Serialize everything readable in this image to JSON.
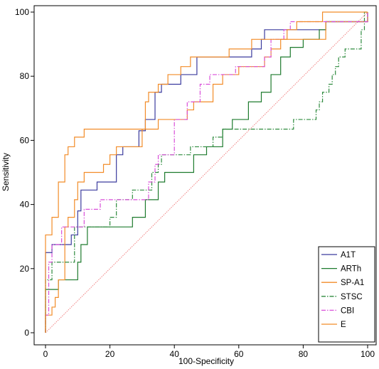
{
  "chart_data": {
    "type": "line",
    "title": "",
    "xlabel": "100-Specificity",
    "ylabel": "Sensitivity",
    "xlim": [
      0,
      100
    ],
    "ylim": [
      0,
      100
    ],
    "x_ticks": [
      0,
      20,
      40,
      60,
      80,
      100
    ],
    "y_ticks": [
      0,
      20,
      40,
      60,
      80,
      100
    ],
    "grid": false,
    "legend_position": "bottom-right",
    "reference_line": {
      "from": [
        0,
        0
      ],
      "to": [
        100,
        100
      ],
      "color": "#f08080",
      "style": "dotted"
    },
    "series": [
      {
        "name": "A1T",
        "color": "#3b3b9e",
        "dash": "solid",
        "points": [
          [
            0,
            0
          ],
          [
            0,
            25
          ],
          [
            2,
            25
          ],
          [
            2,
            27.5
          ],
          [
            8,
            27.5
          ],
          [
            8,
            30.5
          ],
          [
            10,
            30.5
          ],
          [
            10,
            38
          ],
          [
            11,
            38
          ],
          [
            11,
            44.5
          ],
          [
            16,
            44.5
          ],
          [
            16,
            47
          ],
          [
            22,
            47
          ],
          [
            22,
            55.5
          ],
          [
            24,
            55.5
          ],
          [
            24,
            58
          ],
          [
            29,
            58
          ],
          [
            29,
            63
          ],
          [
            31,
            63
          ],
          [
            31,
            66.5
          ],
          [
            34,
            66.5
          ],
          [
            34,
            75
          ],
          [
            36,
            75
          ],
          [
            36,
            77.5
          ],
          [
            42,
            77.5
          ],
          [
            42,
            80.5
          ],
          [
            47,
            80.5
          ],
          [
            47,
            86
          ],
          [
            64,
            86
          ],
          [
            64,
            88.5
          ],
          [
            67,
            88.5
          ],
          [
            67,
            91.5
          ],
          [
            68,
            91.5
          ],
          [
            68,
            94.5
          ],
          [
            87,
            94.5
          ],
          [
            87,
            97
          ],
          [
            100,
            97
          ],
          [
            100,
            100
          ]
        ]
      },
      {
        "name": "ARTh",
        "color": "#1e7b2e",
        "dash": "solid",
        "points": [
          [
            0,
            0
          ],
          [
            0,
            13.5
          ],
          [
            4,
            13.5
          ],
          [
            4,
            16.5
          ],
          [
            10,
            16.5
          ],
          [
            10,
            22
          ],
          [
            11,
            22
          ],
          [
            11,
            27.5
          ],
          [
            13,
            27.5
          ],
          [
            13,
            33
          ],
          [
            27,
            33
          ],
          [
            27,
            36
          ],
          [
            31,
            36
          ],
          [
            31,
            41.5
          ],
          [
            35,
            41.5
          ],
          [
            35,
            47
          ],
          [
            37,
            47
          ],
          [
            37,
            50
          ],
          [
            46,
            50
          ],
          [
            46,
            55.5
          ],
          [
            50,
            55.5
          ],
          [
            50,
            58
          ],
          [
            55,
            58
          ],
          [
            55,
            63.5
          ],
          [
            58,
            63.5
          ],
          [
            58,
            66.5
          ],
          [
            63,
            66.5
          ],
          [
            63,
            72
          ],
          [
            67,
            72
          ],
          [
            67,
            75
          ],
          [
            70,
            75
          ],
          [
            70,
            80.5
          ],
          [
            73,
            80.5
          ],
          [
            73,
            86
          ],
          [
            76,
            86
          ],
          [
            76,
            89
          ],
          [
            80,
            89
          ],
          [
            80,
            91.5
          ],
          [
            85,
            91.5
          ],
          [
            85,
            94.5
          ],
          [
            87,
            94.5
          ],
          [
            87,
            97
          ],
          [
            100,
            97
          ],
          [
            100,
            100
          ]
        ]
      },
      {
        "name": "SP-A1",
        "color": "#f28c28",
        "dash": "solid",
        "points": [
          [
            0,
            0
          ],
          [
            0,
            5.5
          ],
          [
            2,
            5.5
          ],
          [
            2,
            8
          ],
          [
            3,
            8
          ],
          [
            3,
            11
          ],
          [
            4,
            11
          ],
          [
            4,
            16.5
          ],
          [
            6,
            16.5
          ],
          [
            6,
            33
          ],
          [
            7,
            33
          ],
          [
            7,
            36
          ],
          [
            9,
            36
          ],
          [
            9,
            41.5
          ],
          [
            10,
            41.5
          ],
          [
            10,
            47
          ],
          [
            12,
            47
          ],
          [
            12,
            50
          ],
          [
            18,
            50
          ],
          [
            18,
            52.5
          ],
          [
            20,
            52.5
          ],
          [
            20,
            55.5
          ],
          [
            22,
            55.5
          ],
          [
            22,
            58
          ],
          [
            30,
            58
          ],
          [
            30,
            63.5
          ],
          [
            35,
            63.5
          ],
          [
            35,
            66.5
          ],
          [
            44,
            66.5
          ],
          [
            44,
            69.5
          ],
          [
            46,
            69.5
          ],
          [
            46,
            72
          ],
          [
            52,
            72
          ],
          [
            52,
            77.5
          ],
          [
            55,
            77.5
          ],
          [
            55,
            80.5
          ],
          [
            60,
            80.5
          ],
          [
            60,
            83
          ],
          [
            68,
            83
          ],
          [
            68,
            86
          ],
          [
            70,
            86
          ],
          [
            70,
            88.5
          ],
          [
            73,
            88.5
          ],
          [
            73,
            91.5
          ],
          [
            87,
            91.5
          ],
          [
            87,
            97
          ],
          [
            100,
            97
          ],
          [
            100,
            100
          ]
        ]
      },
      {
        "name": "STSC",
        "color": "#2e8b3e",
        "dash": "dashdot",
        "points": [
          [
            0,
            0
          ],
          [
            0,
            16.5
          ],
          [
            2,
            16.5
          ],
          [
            2,
            22
          ],
          [
            9,
            22
          ],
          [
            9,
            33
          ],
          [
            20,
            33
          ],
          [
            20,
            36
          ],
          [
            22,
            36
          ],
          [
            22,
            41.5
          ],
          [
            27,
            41.5
          ],
          [
            27,
            44.5
          ],
          [
            33,
            44.5
          ],
          [
            33,
            50
          ],
          [
            35,
            50
          ],
          [
            35,
            52.5
          ],
          [
            36,
            52.5
          ],
          [
            36,
            55.5
          ],
          [
            45,
            55.5
          ],
          [
            45,
            58
          ],
          [
            52,
            58
          ],
          [
            52,
            61
          ],
          [
            55,
            61
          ],
          [
            55,
            63.5
          ],
          [
            77,
            63.5
          ],
          [
            77,
            66.5
          ],
          [
            84,
            66.5
          ],
          [
            84,
            69.5
          ],
          [
            85,
            69.5
          ],
          [
            85,
            72
          ],
          [
            86,
            72
          ],
          [
            86,
            75
          ],
          [
            88,
            75
          ],
          [
            88,
            77.5
          ],
          [
            89,
            77.5
          ],
          [
            89,
            80.5
          ],
          [
            90,
            80.5
          ],
          [
            90,
            83
          ],
          [
            91,
            83
          ],
          [
            91,
            86
          ],
          [
            93,
            86
          ],
          [
            93,
            88.5
          ],
          [
            98,
            88.5
          ],
          [
            98,
            94.5
          ],
          [
            99,
            94.5
          ],
          [
            99,
            100
          ],
          [
            100,
            100
          ]
        ]
      },
      {
        "name": "CBI",
        "color": "#d94fd9",
        "dash": "dashdot",
        "points": [
          [
            0,
            0
          ],
          [
            0,
            5.5
          ],
          [
            1,
            5.5
          ],
          [
            1,
            22
          ],
          [
            2,
            22
          ],
          [
            2,
            27.5
          ],
          [
            5,
            27.5
          ],
          [
            5,
            33
          ],
          [
            12,
            33
          ],
          [
            12,
            38.5
          ],
          [
            17,
            38.5
          ],
          [
            17,
            41.5
          ],
          [
            32,
            41.5
          ],
          [
            32,
            47
          ],
          [
            34,
            47
          ],
          [
            34,
            52.5
          ],
          [
            35,
            52.5
          ],
          [
            35,
            55.5
          ],
          [
            40,
            55.5
          ],
          [
            40,
            66.5
          ],
          [
            44,
            66.5
          ],
          [
            44,
            72
          ],
          [
            48,
            72
          ],
          [
            48,
            77.5
          ],
          [
            51,
            77.5
          ],
          [
            51,
            80.5
          ],
          [
            59,
            80.5
          ],
          [
            59,
            83
          ],
          [
            68,
            83
          ],
          [
            68,
            86
          ],
          [
            70,
            86
          ],
          [
            70,
            91.5
          ],
          [
            74,
            91.5
          ],
          [
            74,
            94.5
          ],
          [
            76,
            94.5
          ],
          [
            76,
            97
          ],
          [
            100,
            97
          ],
          [
            100,
            100
          ]
        ]
      },
      {
        "name": "E",
        "color": "#f28c28",
        "dash": "solid",
        "points": [
          [
            0,
            0
          ],
          [
            0,
            30.5
          ],
          [
            2,
            30.5
          ],
          [
            2,
            36
          ],
          [
            4,
            36
          ],
          [
            4,
            47
          ],
          [
            6,
            47
          ],
          [
            6,
            55.5
          ],
          [
            7,
            55.5
          ],
          [
            7,
            58
          ],
          [
            9,
            58
          ],
          [
            9,
            61
          ],
          [
            12,
            61
          ],
          [
            12,
            63.5
          ],
          [
            31,
            63.5
          ],
          [
            31,
            72
          ],
          [
            32,
            72
          ],
          [
            32,
            75
          ],
          [
            35,
            75
          ],
          [
            35,
            77.5
          ],
          [
            38,
            77.5
          ],
          [
            38,
            80.5
          ],
          [
            42,
            80.5
          ],
          [
            42,
            83
          ],
          [
            45,
            83
          ],
          [
            45,
            86
          ],
          [
            57,
            86
          ],
          [
            57,
            88.5
          ],
          [
            64,
            88.5
          ],
          [
            64,
            91.5
          ],
          [
            75,
            91.5
          ],
          [
            75,
            94.5
          ],
          [
            78,
            94.5
          ],
          [
            78,
            97
          ],
          [
            86,
            97
          ],
          [
            86,
            100
          ],
          [
            100,
            100
          ]
        ]
      }
    ]
  }
}
